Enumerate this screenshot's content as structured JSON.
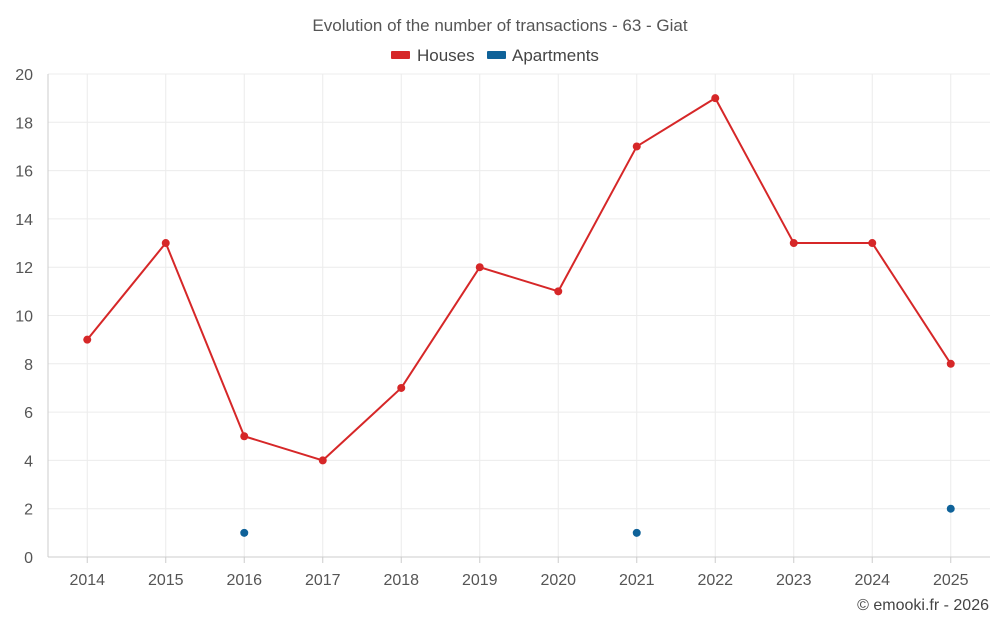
{
  "chart_data": {
    "type": "line",
    "title": "Evolution of the number of transactions - 63 - Giat",
    "categories": [
      "2014",
      "2015",
      "2016",
      "2017",
      "2018",
      "2019",
      "2020",
      "2021",
      "2022",
      "2023",
      "2024",
      "2025"
    ],
    "series": [
      {
        "name": "Houses",
        "color": "#d62728",
        "line": true,
        "values": [
          9,
          13,
          5,
          4,
          7,
          12,
          11,
          17,
          19,
          13,
          13,
          8
        ]
      },
      {
        "name": "Apartments",
        "color": "#0f6299",
        "line": false,
        "values": [
          null,
          null,
          1,
          null,
          null,
          null,
          null,
          1,
          null,
          null,
          null,
          2
        ]
      }
    ],
    "ylim": [
      0,
      20
    ],
    "yticks": [
      0,
      2,
      4,
      6,
      8,
      10,
      12,
      14,
      16,
      18,
      20
    ],
    "xlabel": "",
    "ylabel": "",
    "grid": true,
    "legend": "top-center"
  },
  "credit": "© emooki.fr - 2026"
}
